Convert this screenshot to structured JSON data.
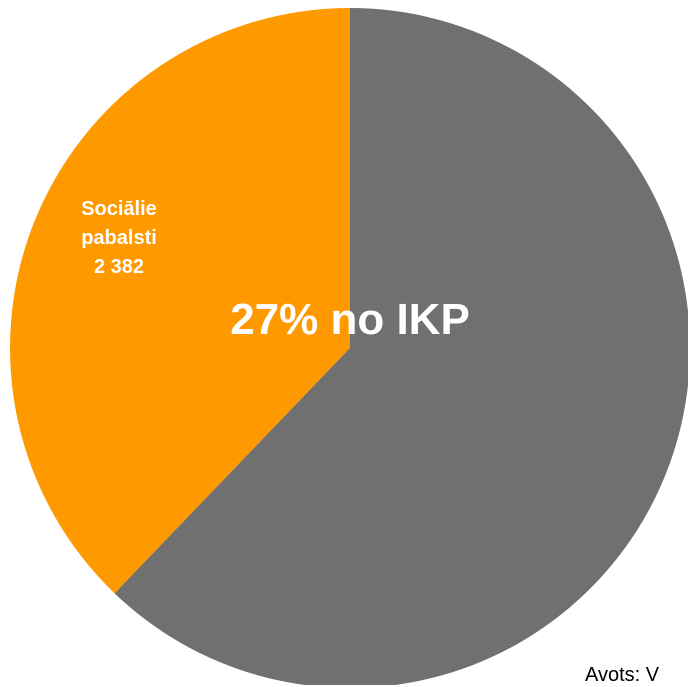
{
  "chart_data": {
    "type": "pie",
    "center_label": "27% no IKP",
    "slices": [
      {
        "label_lines": [
          "Sociālie",
          "pabalsti",
          "2 382"
        ],
        "value": 2382,
        "color": "#FF9900"
      },
      {
        "label_lines": [],
        "value": 3915,
        "color": "#707070"
      }
    ],
    "start_angle_deg": 0,
    "direction": "counterclockwise"
  },
  "source_text": "Avots: V"
}
